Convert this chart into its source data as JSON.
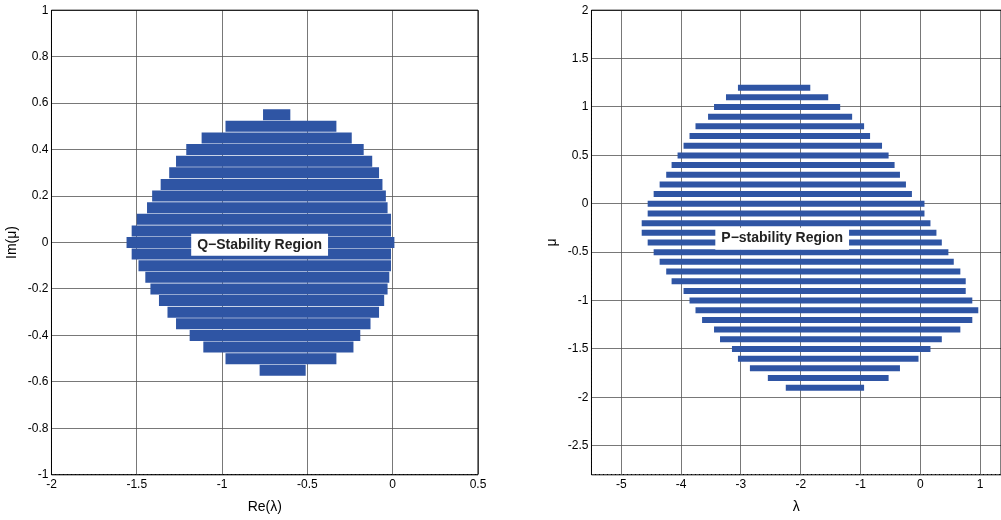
{
  "chart_data": [
    {
      "type": "line",
      "xlabel": "Re(λ)",
      "ylabel": "Im(μ)",
      "xlim": [
        -2,
        0.5
      ],
      "ylim": [
        -1,
        1
      ],
      "xticks": [
        -2,
        -1.5,
        -1,
        -0.5,
        0,
        0.5
      ],
      "yticks": [
        -1,
        -0.8,
        -0.6,
        -0.4,
        -0.2,
        0,
        0.2,
        0.4,
        0.6,
        0.8,
        1
      ],
      "grid": true,
      "legend": false,
      "annotations": [
        {
          "text": "Q−Stability Region",
          "x": -0.78,
          "y": -0.01
        }
      ],
      "series": [
        {
          "color": "#2f55a4",
          "x": [
            -0.76,
            -0.6
          ],
          "values": [
            0.55,
            0.55
          ]
        },
        {
          "color": "#2f55a4",
          "x": [
            -0.98,
            -0.33
          ],
          "values": [
            0.5,
            0.5
          ]
        },
        {
          "color": "#2f55a4",
          "x": [
            -1.12,
            -0.24
          ],
          "values": [
            0.45,
            0.45
          ]
        },
        {
          "color": "#2f55a4",
          "x": [
            -1.21,
            -0.17
          ],
          "values": [
            0.4,
            0.4
          ]
        },
        {
          "color": "#2f55a4",
          "x": [
            -1.27,
            -0.12
          ],
          "values": [
            0.35,
            0.35
          ]
        },
        {
          "color": "#2f55a4",
          "x": [
            -1.31,
            -0.08
          ],
          "values": [
            0.3,
            0.3
          ]
        },
        {
          "color": "#2f55a4",
          "x": [
            -1.36,
            -0.06
          ],
          "values": [
            0.25,
            0.25
          ]
        },
        {
          "color": "#2f55a4",
          "x": [
            -1.41,
            -0.04
          ],
          "values": [
            0.2,
            0.2
          ]
        },
        {
          "color": "#2f55a4",
          "x": [
            -1.44,
            -0.03
          ],
          "values": [
            0.15,
            0.15
          ]
        },
        {
          "color": "#2f55a4",
          "x": [
            -1.5,
            -0.01
          ],
          "values": [
            0.1,
            0.1
          ]
        },
        {
          "color": "#2f55a4",
          "x": [
            -1.53,
            -0.01
          ],
          "values": [
            0.05,
            0.05
          ]
        },
        {
          "color": "#2f55a4",
          "x": [
            -1.56,
            0.01
          ],
          "values": [
            0,
            0
          ]
        },
        {
          "color": "#2f55a4",
          "x": [
            -1.53,
            -0.01
          ],
          "values": [
            -0.05,
            -0.05
          ]
        },
        {
          "color": "#2f55a4",
          "x": [
            -1.49,
            -0.01
          ],
          "values": [
            -0.1,
            -0.1
          ]
        },
        {
          "color": "#2f55a4",
          "x": [
            -1.45,
            -0.02
          ],
          "values": [
            -0.15,
            -0.15
          ]
        },
        {
          "color": "#2f55a4",
          "x": [
            -1.42,
            -0.03
          ],
          "values": [
            -0.2,
            -0.2
          ]
        },
        {
          "color": "#2f55a4",
          "x": [
            -1.37,
            -0.05
          ],
          "values": [
            -0.25,
            -0.25
          ]
        },
        {
          "color": "#2f55a4",
          "x": [
            -1.32,
            -0.08
          ],
          "values": [
            -0.3,
            -0.3
          ]
        },
        {
          "color": "#2f55a4",
          "x": [
            -1.27,
            -0.13
          ],
          "values": [
            -0.35,
            -0.35
          ]
        },
        {
          "color": "#2f55a4",
          "x": [
            -1.19,
            -0.19
          ],
          "values": [
            -0.4,
            -0.4
          ]
        },
        {
          "color": "#2f55a4",
          "x": [
            -1.11,
            -0.23
          ],
          "values": [
            -0.45,
            -0.45
          ]
        },
        {
          "color": "#2f55a4",
          "x": [
            -0.98,
            -0.33
          ],
          "values": [
            -0.5,
            -0.5
          ]
        },
        {
          "color": "#2f55a4",
          "x": [
            -0.78,
            -0.51
          ],
          "values": [
            -0.55,
            -0.55
          ]
        }
      ]
    },
    {
      "type": "line",
      "xlabel": "λ",
      "ylabel": "μ",
      "xlim": [
        -5.5,
        1.35
      ],
      "ylim": [
        -2.8,
        2
      ],
      "xticks": [
        -5,
        -4,
        -3,
        -2,
        -1,
        0,
        1
      ],
      "yticks": [
        -2.5,
        -2,
        -1.5,
        -1,
        -0.5,
        0,
        0.5,
        1,
        1.5,
        2
      ],
      "grid": true,
      "legend": false,
      "annotations": [
        {
          "text": "P−stability Region",
          "x": -2.31,
          "y": -0.36
        }
      ],
      "series": [
        {
          "color": "#2f55a4",
          "x": [
            -3.05,
            -1.84
          ],
          "values": [
            1.2,
            1.2
          ]
        },
        {
          "color": "#2f55a4",
          "x": [
            -3.25,
            -1.54
          ],
          "values": [
            1.1,
            1.1
          ]
        },
        {
          "color": "#2f55a4",
          "x": [
            -3.45,
            -1.34
          ],
          "values": [
            1,
            1
          ]
        },
        {
          "color": "#2f55a4",
          "x": [
            -3.55,
            -1.14
          ],
          "values": [
            0.9,
            0.9
          ]
        },
        {
          "color": "#2f55a4",
          "x": [
            -3.76,
            -0.94
          ],
          "values": [
            0.8,
            0.8
          ]
        },
        {
          "color": "#2f55a4",
          "x": [
            -3.86,
            -0.84
          ],
          "values": [
            0.7,
            0.7
          ]
        },
        {
          "color": "#2f55a4",
          "x": [
            -3.96,
            -0.64
          ],
          "values": [
            0.6,
            0.6
          ]
        },
        {
          "color": "#2f55a4",
          "x": [
            -4.06,
            -0.53
          ],
          "values": [
            0.5,
            0.5
          ]
        },
        {
          "color": "#2f55a4",
          "x": [
            -4.16,
            -0.43
          ],
          "values": [
            0.4,
            0.4
          ]
        },
        {
          "color": "#2f55a4",
          "x": [
            -4.25,
            -0.34
          ],
          "values": [
            0.3,
            0.3
          ]
        },
        {
          "color": "#2f55a4",
          "x": [
            -4.36,
            -0.24
          ],
          "values": [
            0.2,
            0.2
          ]
        },
        {
          "color": "#2f55a4",
          "x": [
            -4.46,
            -0.14
          ],
          "values": [
            0.1,
            0.1
          ]
        },
        {
          "color": "#2f55a4",
          "x": [
            -4.56,
            0.07
          ],
          "values": [
            0,
            0
          ]
        },
        {
          "color": "#2f55a4",
          "x": [
            -4.56,
            0.07
          ],
          "values": [
            -0.1,
            -0.1
          ]
        },
        {
          "color": "#2f55a4",
          "x": [
            -4.66,
            0.17
          ],
          "values": [
            -0.2,
            -0.2
          ]
        },
        {
          "color": "#2f55a4",
          "x": [
            -4.66,
            0.27
          ],
          "values": [
            -0.3,
            -0.3
          ]
        },
        {
          "color": "#2f55a4",
          "x": [
            -4.56,
            0.36
          ],
          "values": [
            -0.4,
            -0.4
          ]
        },
        {
          "color": "#2f55a4",
          "x": [
            -4.46,
            0.47
          ],
          "values": [
            -0.5,
            -0.5
          ]
        },
        {
          "color": "#2f55a4",
          "x": [
            -4.36,
            0.56
          ],
          "values": [
            -0.6,
            -0.6
          ]
        },
        {
          "color": "#2f55a4",
          "x": [
            -4.25,
            0.67
          ],
          "values": [
            -0.7,
            -0.7
          ]
        },
        {
          "color": "#2f55a4",
          "x": [
            -4.16,
            0.76
          ],
          "values": [
            -0.8,
            -0.8
          ]
        },
        {
          "color": "#2f55a4",
          "x": [
            -3.96,
            0.76
          ],
          "values": [
            -0.9,
            -0.9
          ]
        },
        {
          "color": "#2f55a4",
          "x": [
            -3.86,
            0.87
          ],
          "values": [
            -1,
            -1
          ]
        },
        {
          "color": "#2f55a4",
          "x": [
            -3.76,
            0.97
          ],
          "values": [
            -1.1,
            -1.1
          ]
        },
        {
          "color": "#2f55a4",
          "x": [
            -3.65,
            0.87
          ],
          "values": [
            -1.2,
            -1.2
          ]
        },
        {
          "color": "#2f55a4",
          "x": [
            -3.45,
            0.67
          ],
          "values": [
            -1.3,
            -1.3
          ]
        },
        {
          "color": "#2f55a4",
          "x": [
            -3.35,
            0.36
          ],
          "values": [
            -1.4,
            -1.4
          ]
        },
        {
          "color": "#2f55a4",
          "x": [
            -3.15,
            0.17
          ],
          "values": [
            -1.5,
            -1.5
          ]
        },
        {
          "color": "#2f55a4",
          "x": [
            -3.05,
            -0.03
          ],
          "values": [
            -1.6,
            -1.6
          ]
        },
        {
          "color": "#2f55a4",
          "x": [
            -2.85,
            -0.34
          ],
          "values": [
            -1.7,
            -1.7
          ]
        },
        {
          "color": "#2f55a4",
          "x": [
            -2.55,
            -0.53
          ],
          "values": [
            -1.8,
            -1.8
          ]
        },
        {
          "color": "#2f55a4",
          "x": [
            -2.25,
            -0.94
          ],
          "values": [
            -1.9,
            -1.9
          ]
        }
      ]
    }
  ]
}
